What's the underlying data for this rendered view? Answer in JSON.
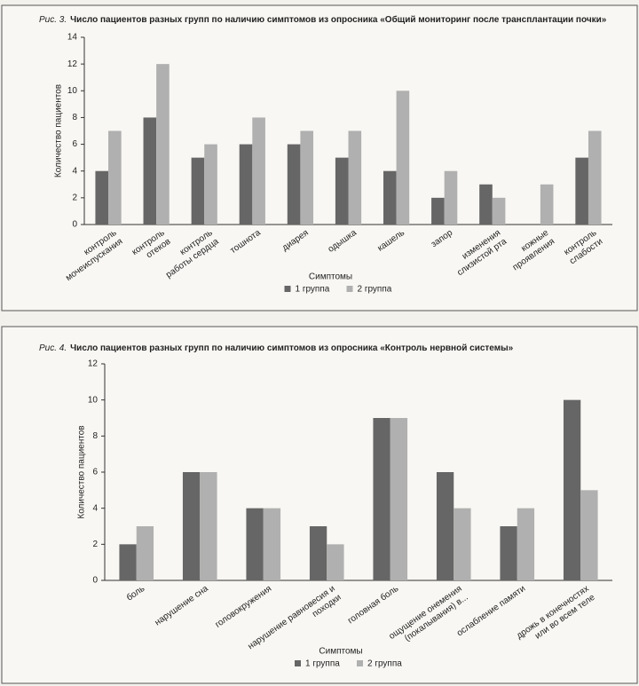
{
  "chart_data": [
    {
      "type": "bar",
      "figure_label": "Рис. 3.",
      "title": "Число пациентов разных групп по наличию симптомов из опросника «Общий мониторинг после трансплантации почки»",
      "x_label": "Симптомы",
      "y_label": "Количество пациентов",
      "categories": [
        [
          "контроль",
          "мочеиспускания"
        ],
        [
          "контроль",
          "отеков"
        ],
        [
          "контроль",
          "работы сердца"
        ],
        [
          "тошнота"
        ],
        [
          "диарея"
        ],
        [
          "одышка"
        ],
        [
          "кашель"
        ],
        [
          "запор"
        ],
        [
          "изменения",
          "слизистой рта"
        ],
        [
          "кожные",
          "проявления"
        ],
        [
          "контроль",
          "слабости"
        ]
      ],
      "series": [
        {
          "name": "1 группа",
          "color": "#666666",
          "values": [
            4,
            8,
            5,
            6,
            6,
            5,
            4,
            2,
            3,
            0,
            5
          ]
        },
        {
          "name": "2 группа",
          "color": "#b0b0b0",
          "values": [
            7,
            12,
            6,
            8,
            7,
            7,
            10,
            4,
            2,
            3,
            7
          ]
        }
      ],
      "ylim": [
        0,
        14
      ],
      "yticks": [
        0,
        2,
        4,
        6,
        8,
        10,
        12,
        14
      ],
      "legend": "bottom"
    },
    {
      "type": "bar",
      "figure_label": "Рис. 4.",
      "title": "Число пациентов разных групп по наличию симптомов из опросника «Контроль нервной системы»",
      "x_label": "Симптомы",
      "y_label": "Количество пациентов",
      "categories": [
        [
          "боль"
        ],
        [
          "нарушение сна"
        ],
        [
          "головокружения"
        ],
        [
          "нарушение равновесия и",
          "походки"
        ],
        [
          "головная боль"
        ],
        [
          "ощущение онемения",
          "(покалывания) в..."
        ],
        [
          "ослабление памяти"
        ],
        [
          "дрожь в конечностях",
          "или во всем теле"
        ]
      ],
      "series": [
        {
          "name": "1 группа",
          "color": "#666666",
          "values": [
            2,
            6,
            4,
            3,
            9,
            6,
            3,
            10
          ]
        },
        {
          "name": "2 группа",
          "color": "#b0b0b0",
          "values": [
            3,
            6,
            4,
            2,
            9,
            4,
            4,
            5
          ]
        }
      ],
      "ylim": [
        0,
        12
      ],
      "yticks": [
        0,
        2,
        4,
        6,
        8,
        10,
        12
      ],
      "legend": "bottom"
    }
  ]
}
